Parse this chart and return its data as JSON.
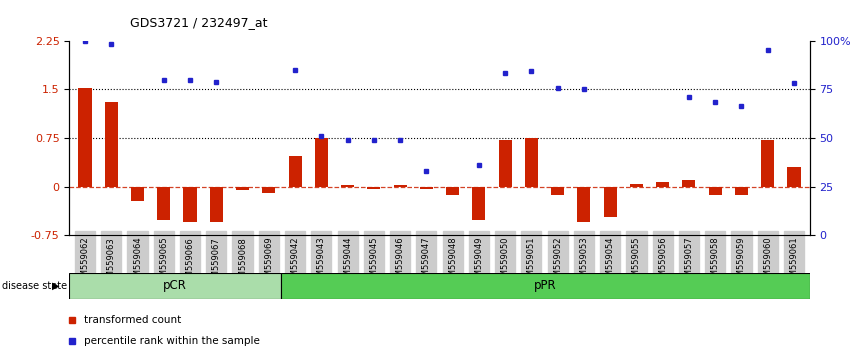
{
  "title": "GDS3721 / 232497_at",
  "samples": [
    "GSM559062",
    "GSM559063",
    "GSM559064",
    "GSM559065",
    "GSM559066",
    "GSM559067",
    "GSM559068",
    "GSM559069",
    "GSM559042",
    "GSM559043",
    "GSM559044",
    "GSM559045",
    "GSM559046",
    "GSM559047",
    "GSM559048",
    "GSM559049",
    "GSM559050",
    "GSM559051",
    "GSM559052",
    "GSM559053",
    "GSM559054",
    "GSM559055",
    "GSM559056",
    "GSM559057",
    "GSM559058",
    "GSM559059",
    "GSM559060",
    "GSM559061"
  ],
  "red_bars": [
    1.52,
    1.3,
    -0.22,
    -0.52,
    -0.55,
    -0.55,
    -0.05,
    -0.1,
    0.47,
    0.75,
    0.02,
    -0.04,
    0.02,
    -0.04,
    -0.13,
    -0.52,
    0.72,
    0.75,
    -0.12,
    -0.55,
    -0.47,
    0.04,
    0.08,
    0.1,
    -0.12,
    -0.12,
    0.72,
    0.3
  ],
  "blue_dots": [
    2.25,
    2.2,
    null,
    1.65,
    1.65,
    1.62,
    null,
    null,
    1.8,
    0.78,
    0.72,
    0.72,
    0.72,
    0.25,
    null,
    0.34,
    1.75,
    1.78,
    1.52,
    1.5,
    null,
    null,
    null,
    1.38,
    1.3,
    1.25,
    2.1,
    1.6
  ],
  "pcr_count": 8,
  "ylim_left": [
    -0.75,
    2.25
  ],
  "ylim_right": [
    0,
    100
  ],
  "yticks_left": [
    -0.75,
    0,
    0.75,
    1.5,
    2.25
  ],
  "yticks_right": [
    0,
    25,
    50,
    75,
    100
  ],
  "hlines": [
    0.75,
    1.5
  ],
  "bar_color": "#cc2200",
  "dot_color": "#2222cc",
  "zero_line_color": "#cc2200",
  "pcr_color": "#aaddaa",
  "ppr_color": "#55cc55",
  "label_color_left": "#cc2200",
  "label_color_right": "#2222cc",
  "legend_bar_label": "transformed count",
  "legend_dot_label": "percentile rank within the sample",
  "disease_state_label": "disease state",
  "pcr_label": "pCR",
  "ppr_label": "pPR",
  "bg_color_xtick": "#cccccc"
}
